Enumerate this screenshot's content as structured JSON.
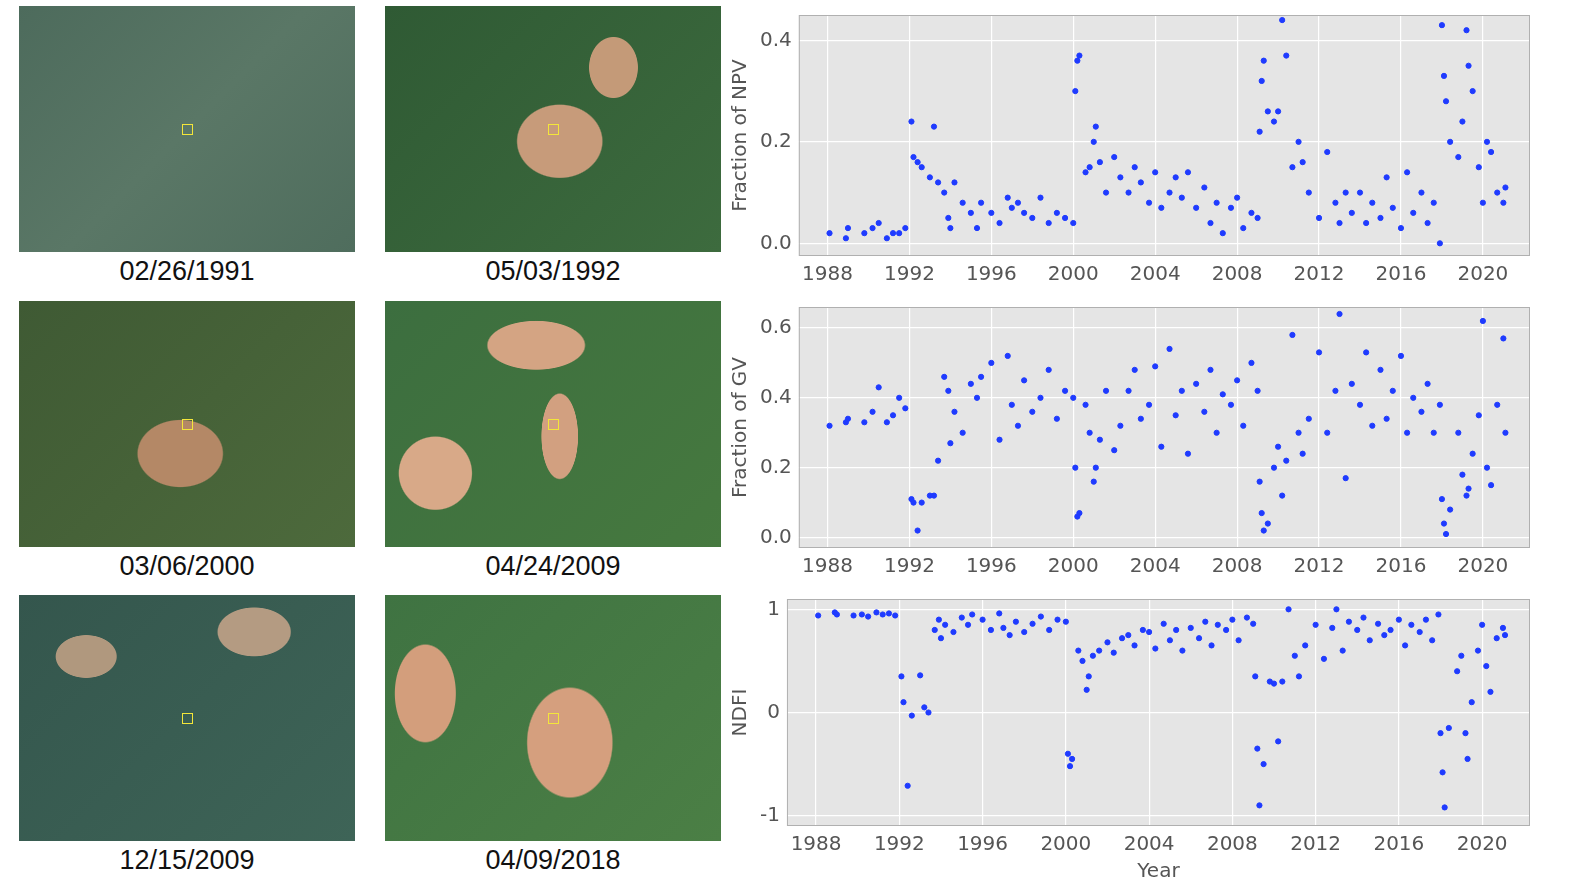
{
  "images": [
    {
      "caption": "02/26/1991"
    },
    {
      "caption": "05/03/1992"
    },
    {
      "caption": "03/06/2000"
    },
    {
      "caption": "04/24/2009"
    },
    {
      "caption": "12/15/2009"
    },
    {
      "caption": "04/09/2018"
    }
  ],
  "chart_data": [
    {
      "type": "scatter",
      "y_label": "Fraction of NPV",
      "color": "#1f3bff",
      "marker": "circle",
      "grid": true,
      "xlim": [
        1986.6,
        2022.3
      ],
      "xticks": [
        1988,
        1992,
        1996,
        2000,
        2004,
        2008,
        2012,
        2016,
        2020
      ],
      "ylim": [
        -0.025,
        0.45
      ],
      "yticks": [
        {
          "value": 0,
          "label": "0.0"
        },
        {
          "value": 0.2,
          "label": "0.2"
        },
        {
          "value": 0.4,
          "label": "0.4"
        }
      ],
      "x": [
        1988.1,
        1988.9,
        1989.0,
        1989.8,
        1990.2,
        1990.5,
        1990.9,
        1991.2,
        1991.5,
        1991.8,
        1992.1,
        1992.2,
        1992.4,
        1992.6,
        1993.0,
        1993.2,
        1993.4,
        1993.7,
        1993.9,
        1994.0,
        1994.2,
        1994.6,
        1995.0,
        1995.3,
        1995.5,
        1996.0,
        1996.4,
        1996.8,
        1997.0,
        1997.3,
        1997.6,
        1998.0,
        1998.4,
        1998.8,
        1999.2,
        1999.6,
        2000.0,
        2000.1,
        2000.2,
        2000.3,
        2000.6,
        2000.8,
        2001.0,
        2001.1,
        2001.3,
        2001.6,
        2002.0,
        2002.3,
        2002.7,
        2003.0,
        2003.3,
        2003.7,
        2004.0,
        2004.3,
        2004.7,
        2005.0,
        2005.3,
        2005.6,
        2006.0,
        2006.4,
        2006.7,
        2007.0,
        2007.3,
        2007.7,
        2008.0,
        2008.3,
        2008.7,
        2009.0,
        2009.1,
        2009.2,
        2009.3,
        2009.5,
        2009.8,
        2010.0,
        2010.2,
        2010.4,
        2010.7,
        2011.0,
        2011.2,
        2011.5,
        2012.0,
        2012.4,
        2012.8,
        2013.0,
        2013.3,
        2013.6,
        2014.0,
        2014.3,
        2014.6,
        2015.0,
        2015.3,
        2015.6,
        2016.0,
        2016.3,
        2016.6,
        2017.0,
        2017.3,
        2017.6,
        2017.9,
        2018.0,
        2018.1,
        2018.2,
        2018.4,
        2018.8,
        2019.0,
        2019.2,
        2019.3,
        2019.5,
        2019.8,
        2020.0,
        2020.2,
        2020.4,
        2020.7,
        2021.0,
        2021.1
      ],
      "values": [
        0.02,
        0.01,
        0.03,
        0.02,
        0.03,
        0.04,
        0.01,
        0.02,
        0.02,
        0.03,
        0.24,
        0.17,
        0.16,
        0.15,
        0.13,
        0.23,
        0.12,
        0.1,
        0.05,
        0.03,
        0.12,
        0.08,
        0.06,
        0.03,
        0.08,
        0.06,
        0.04,
        0.09,
        0.07,
        0.08,
        0.06,
        0.05,
        0.09,
        0.04,
        0.06,
        0.05,
        0.04,
        0.3,
        0.36,
        0.37,
        0.14,
        0.15,
        0.2,
        0.23,
        0.16,
        0.1,
        0.17,
        0.13,
        0.1,
        0.15,
        0.12,
        0.08,
        0.14,
        0.07,
        0.1,
        0.13,
        0.09,
        0.14,
        0.07,
        0.11,
        0.04,
        0.08,
        0.02,
        0.07,
        0.09,
        0.03,
        0.06,
        0.05,
        0.22,
        0.32,
        0.36,
        0.26,
        0.24,
        0.26,
        0.44,
        0.37,
        0.15,
        0.2,
        0.16,
        0.1,
        0.05,
        0.18,
        0.08,
        0.04,
        0.1,
        0.06,
        0.1,
        0.04,
        0.08,
        0.05,
        0.13,
        0.07,
        0.03,
        0.14,
        0.06,
        0.1,
        0.04,
        0.08,
        0.0,
        0.43,
        0.33,
        0.28,
        0.2,
        0.17,
        0.24,
        0.42,
        0.35,
        0.3,
        0.15,
        0.08,
        0.2,
        0.18,
        0.1,
        0.08,
        0.11
      ]
    },
    {
      "type": "scatter",
      "y_label": "Fraction of GV",
      "color": "#1f3bff",
      "marker": "circle",
      "grid": true,
      "xlim": [
        1986.6,
        2022.3
      ],
      "xticks": [
        1988,
        1992,
        1996,
        2000,
        2004,
        2008,
        2012,
        2016,
        2020
      ],
      "ylim": [
        -0.03,
        0.66
      ],
      "yticks": [
        {
          "value": 0,
          "label": "0.0"
        },
        {
          "value": 0.2,
          "label": "0.2"
        },
        {
          "value": 0.4,
          "label": "0.4"
        },
        {
          "value": 0.6,
          "label": "0.6"
        }
      ],
      "x": [
        1988.1,
        1988.9,
        1989.0,
        1989.8,
        1990.2,
        1990.5,
        1990.9,
        1991.2,
        1991.5,
        1991.8,
        1992.1,
        1992.2,
        1992.4,
        1992.6,
        1993.0,
        1993.2,
        1993.4,
        1993.7,
        1993.9,
        1994.0,
        1994.2,
        1994.6,
        1995.0,
        1995.3,
        1995.5,
        1996.0,
        1996.4,
        1996.8,
        1997.0,
        1997.3,
        1997.6,
        1998.0,
        1998.4,
        1998.8,
        1999.2,
        1999.6,
        2000.0,
        2000.1,
        2000.2,
        2000.3,
        2000.6,
        2000.8,
        2001.0,
        2001.1,
        2001.3,
        2001.6,
        2002.0,
        2002.3,
        2002.7,
        2003.0,
        2003.3,
        2003.7,
        2004.0,
        2004.3,
        2004.7,
        2005.0,
        2005.3,
        2005.6,
        2006.0,
        2006.4,
        2006.7,
        2007.0,
        2007.3,
        2007.7,
        2008.0,
        2008.3,
        2008.7,
        2009.0,
        2009.1,
        2009.2,
        2009.3,
        2009.5,
        2009.8,
        2010.0,
        2010.2,
        2010.4,
        2010.7,
        2011.0,
        2011.2,
        2011.5,
        2012.0,
        2012.4,
        2012.8,
        2013.0,
        2013.3,
        2013.6,
        2014.0,
        2014.3,
        2014.6,
        2015.0,
        2015.3,
        2015.6,
        2016.0,
        2016.3,
        2016.6,
        2017.0,
        2017.3,
        2017.6,
        2017.9,
        2018.0,
        2018.1,
        2018.2,
        2018.4,
        2018.8,
        2019.0,
        2019.2,
        2019.3,
        2019.5,
        2019.8,
        2020.0,
        2020.2,
        2020.4,
        2020.7,
        2021.0,
        2021.1
      ],
      "values": [
        0.32,
        0.33,
        0.34,
        0.33,
        0.36,
        0.43,
        0.33,
        0.35,
        0.4,
        0.37,
        0.11,
        0.1,
        0.02,
        0.1,
        0.12,
        0.12,
        0.22,
        0.46,
        0.42,
        0.27,
        0.36,
        0.3,
        0.44,
        0.4,
        0.46,
        0.5,
        0.28,
        0.52,
        0.38,
        0.32,
        0.45,
        0.36,
        0.4,
        0.48,
        0.34,
        0.42,
        0.4,
        0.2,
        0.06,
        0.07,
        0.38,
        0.3,
        0.16,
        0.2,
        0.28,
        0.42,
        0.25,
        0.32,
        0.42,
        0.48,
        0.34,
        0.38,
        0.49,
        0.26,
        0.54,
        0.35,
        0.42,
        0.24,
        0.44,
        0.36,
        0.48,
        0.3,
        0.41,
        0.38,
        0.45,
        0.32,
        0.5,
        0.42,
        0.16,
        0.07,
        0.02,
        0.04,
        0.2,
        0.26,
        0.12,
        0.22,
        0.58,
        0.3,
        0.24,
        0.34,
        0.53,
        0.3,
        0.42,
        0.64,
        0.17,
        0.44,
        0.38,
        0.53,
        0.32,
        0.48,
        0.34,
        0.42,
        0.52,
        0.3,
        0.4,
        0.36,
        0.44,
        0.3,
        0.38,
        0.11,
        0.04,
        0.01,
        0.08,
        0.3,
        0.18,
        0.12,
        0.14,
        0.24,
        0.35,
        0.62,
        0.2,
        0.15,
        0.38,
        0.57,
        0.3
      ]
    },
    {
      "type": "scatter",
      "y_label": "NDFI",
      "x_label": "Year",
      "color": "#1f3bff",
      "marker": "circle",
      "grid": true,
      "xlim": [
        1986.6,
        2022.3
      ],
      "xticks": [
        1988,
        1992,
        1996,
        2000,
        2004,
        2008,
        2012,
        2016,
        2020
      ],
      "ylim": [
        -1.1,
        1.1
      ],
      "yticks": [
        -1,
        0,
        1
      ],
      "x": [
        1988.1,
        1988.9,
        1989.0,
        1989.8,
        1990.2,
        1990.5,
        1990.9,
        1991.2,
        1991.5,
        1991.8,
        1992.1,
        1992.2,
        1992.4,
        1992.6,
        1993.0,
        1993.2,
        1993.4,
        1993.7,
        1993.9,
        1994.0,
        1994.2,
        1994.6,
        1995.0,
        1995.3,
        1995.5,
        1996.0,
        1996.4,
        1996.8,
        1997.0,
        1997.3,
        1997.6,
        1998.0,
        1998.4,
        1998.8,
        1999.2,
        1999.6,
        2000.0,
        2000.1,
        2000.2,
        2000.3,
        2000.6,
        2000.8,
        2001.0,
        2001.1,
        2001.3,
        2001.6,
        2002.0,
        2002.3,
        2002.7,
        2003.0,
        2003.3,
        2003.7,
        2004.0,
        2004.3,
        2004.7,
        2005.0,
        2005.3,
        2005.6,
        2006.0,
        2006.4,
        2006.7,
        2007.0,
        2007.3,
        2007.7,
        2008.0,
        2008.3,
        2008.7,
        2009.0,
        2009.1,
        2009.2,
        2009.3,
        2009.5,
        2009.8,
        2010.0,
        2010.2,
        2010.4,
        2010.7,
        2011.0,
        2011.2,
        2011.5,
        2012.0,
        2012.4,
        2012.8,
        2013.0,
        2013.3,
        2013.6,
        2014.0,
        2014.3,
        2014.6,
        2015.0,
        2015.3,
        2015.6,
        2016.0,
        2016.3,
        2016.6,
        2017.0,
        2017.3,
        2017.6,
        2017.9,
        2018.0,
        2018.1,
        2018.2,
        2018.4,
        2018.8,
        2019.0,
        2019.2,
        2019.3,
        2019.5,
        2019.8,
        2020.0,
        2020.2,
        2020.4,
        2020.7,
        2021.0,
        2021.1
      ],
      "values": [
        0.94,
        0.97,
        0.95,
        0.94,
        0.95,
        0.93,
        0.97,
        0.95,
        0.96,
        0.94,
        0.35,
        0.1,
        -0.71,
        -0.03,
        0.36,
        0.05,
        0.0,
        0.8,
        0.9,
        0.72,
        0.85,
        0.78,
        0.92,
        0.85,
        0.95,
        0.9,
        0.8,
        0.96,
        0.82,
        0.75,
        0.88,
        0.78,
        0.86,
        0.93,
        0.8,
        0.9,
        0.88,
        -0.4,
        -0.52,
        -0.45,
        0.6,
        0.5,
        0.22,
        0.35,
        0.55,
        0.6,
        0.68,
        0.58,
        0.72,
        0.75,
        0.65,
        0.8,
        0.78,
        0.62,
        0.86,
        0.7,
        0.8,
        0.6,
        0.82,
        0.72,
        0.88,
        0.65,
        0.85,
        0.8,
        0.9,
        0.7,
        0.92,
        0.86,
        0.35,
        -0.35,
        -0.9,
        -0.5,
        0.3,
        0.28,
        -0.28,
        0.3,
        1.0,
        0.55,
        0.35,
        0.65,
        0.85,
        0.52,
        0.82,
        1.0,
        0.6,
        0.88,
        0.8,
        0.92,
        0.7,
        0.86,
        0.75,
        0.8,
        0.9,
        0.65,
        0.85,
        0.78,
        0.9,
        0.7,
        0.95,
        -0.2,
        -0.58,
        -0.92,
        -0.15,
        0.4,
        0.55,
        -0.2,
        -0.45,
        0.1,
        0.6,
        0.85,
        0.45,
        0.2,
        0.72,
        0.82,
        0.75
      ]
    }
  ]
}
